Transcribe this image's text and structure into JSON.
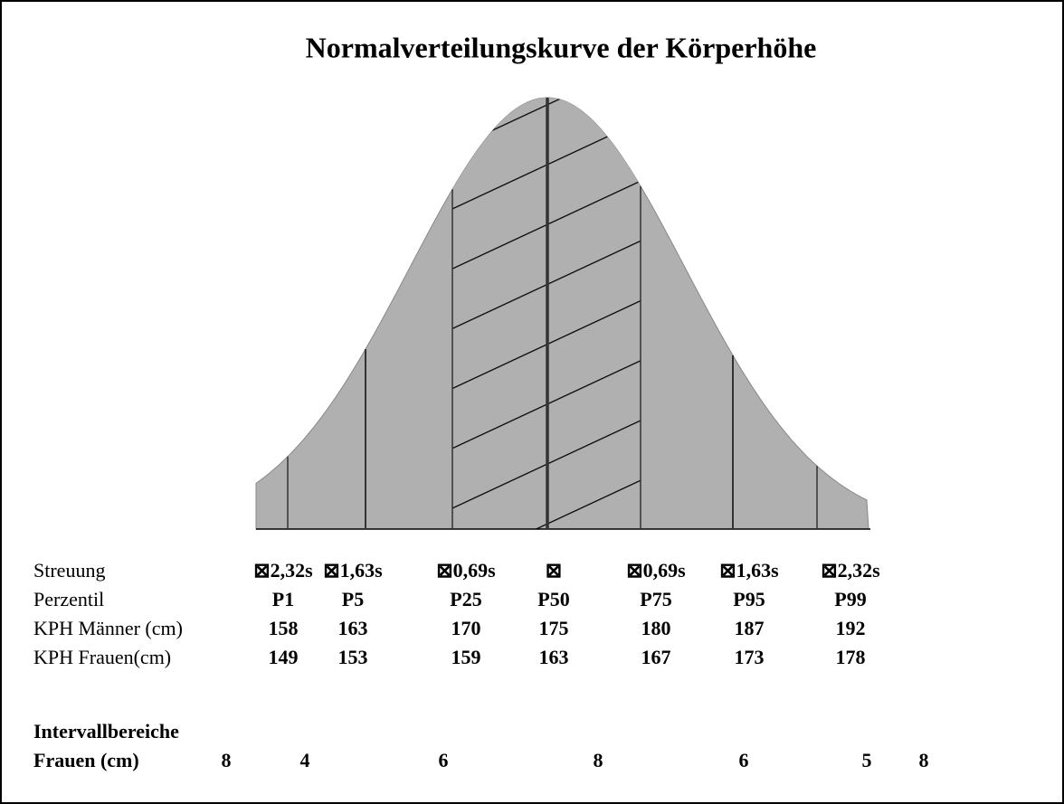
{
  "title": "Normalverteilungskurve der Körperhöhe",
  "table": {
    "rows": [
      {
        "label": "Streuung",
        "cells": [
          "⊠2,32s",
          "⊠1,63s",
          "⊠0,69s",
          "⊠",
          "⊠0,69s",
          "⊠1,63s",
          "⊠2,32s"
        ]
      },
      {
        "label": "Perzentil",
        "cells": [
          "P1",
          "P5",
          "P25",
          "P50",
          "P75",
          "P95",
          "P99"
        ]
      },
      {
        "label": "KPH Männer (cm)",
        "cells": [
          158,
          163,
          170,
          175,
          180,
          187,
          192
        ]
      },
      {
        "label": "KPH Frauen(cm)",
        "cells": [
          149,
          153,
          159,
          163,
          167,
          173,
          178
        ]
      }
    ]
  },
  "intervals": {
    "heading": "Intervallbereiche",
    "label": "Frauen (cm)",
    "values": [
      8,
      4,
      6,
      8,
      6,
      5,
      8
    ]
  }
}
